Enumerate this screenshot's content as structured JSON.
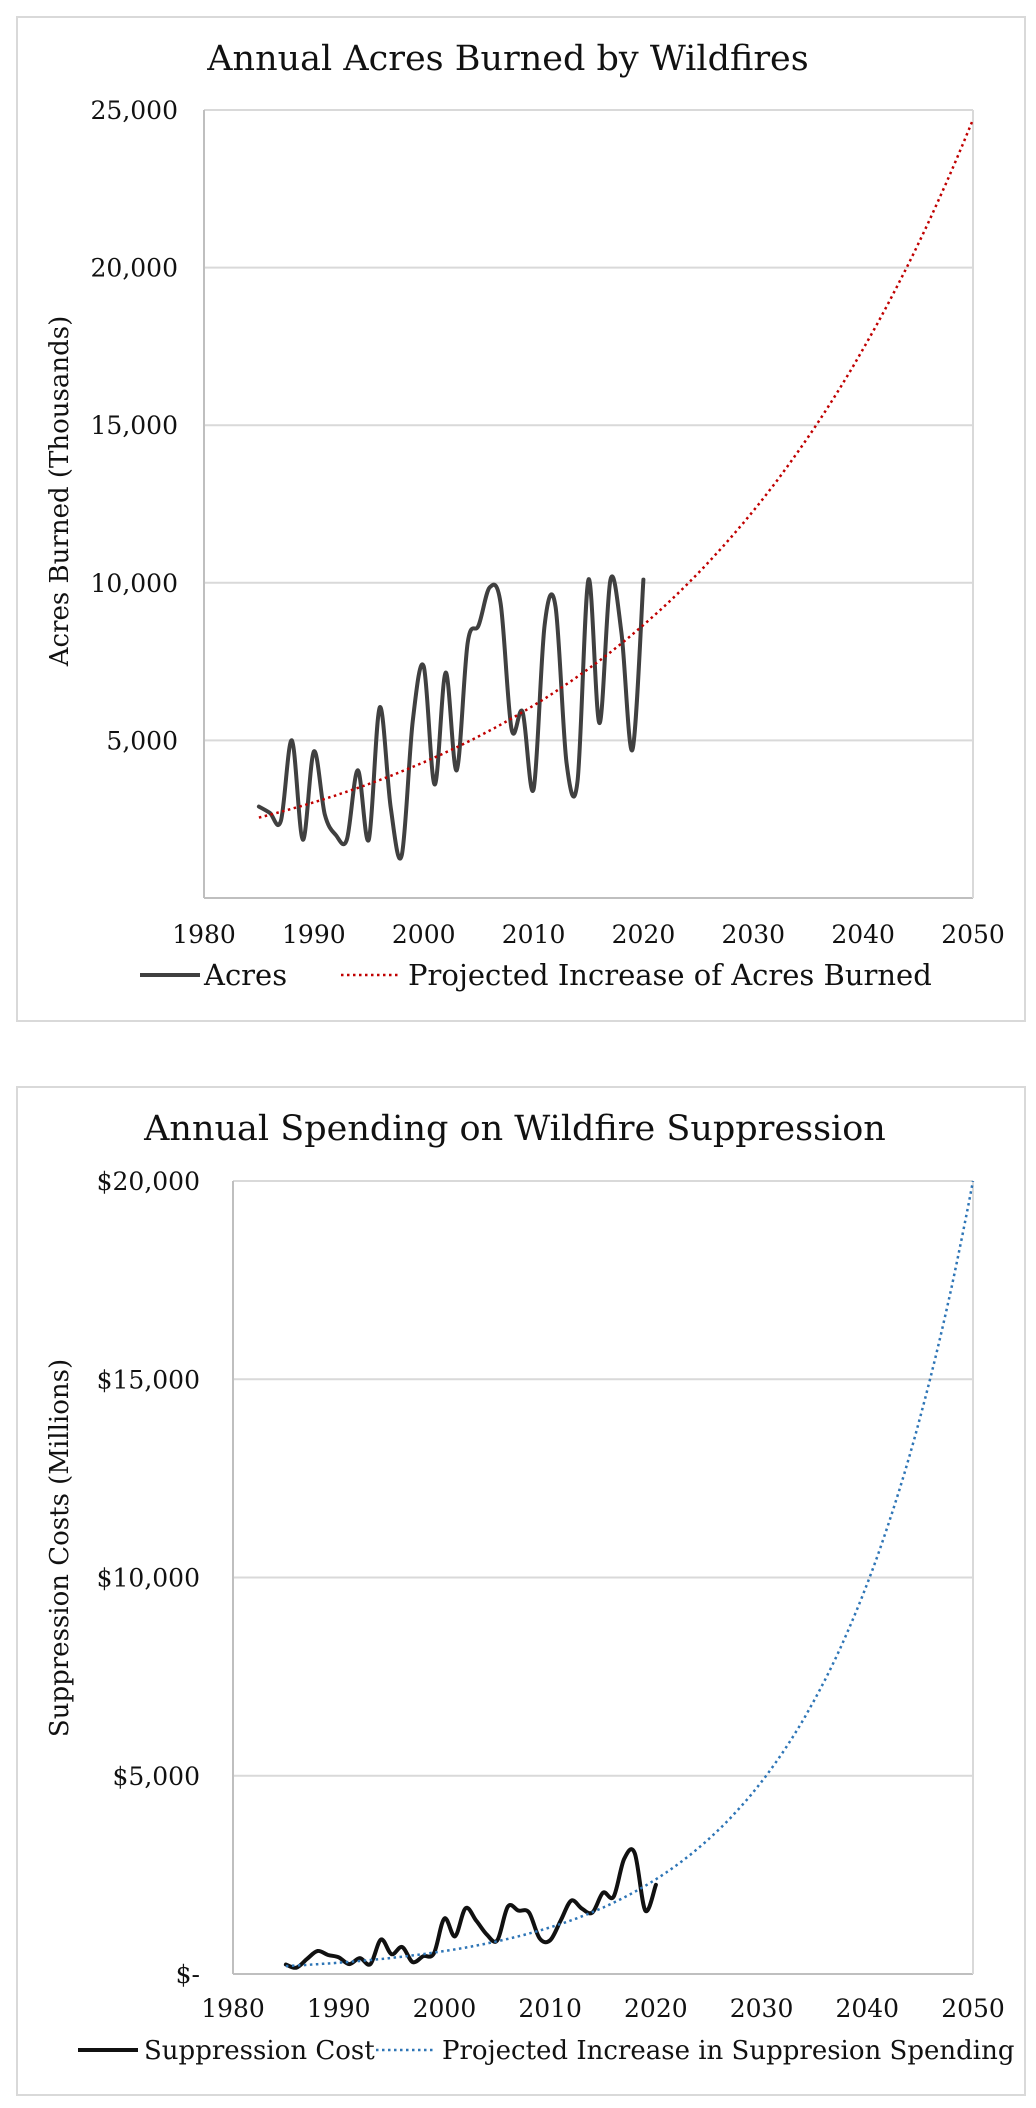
{
  "chart_data": [
    {
      "type": "line",
      "title": "Annual Acres Burned by Wildfires",
      "xlabel": "",
      "ylabel": "Acres Burned (Thousands)",
      "xlim": [
        1980,
        2050
      ],
      "ylim": [
        0,
        25000
      ],
      "x_ticks": [
        "1980",
        "1990",
        "2000",
        "2010",
        "2020",
        "2030",
        "2040",
        "2050"
      ],
      "y_ticks": [
        "5,000",
        "10,000",
        "15,000",
        "20,000",
        "25,000"
      ],
      "y_tick_values": [
        5000,
        10000,
        15000,
        20000,
        25000
      ],
      "grid": true,
      "legend_position": "bottom",
      "series": [
        {
          "name": "Acres",
          "style": "solid",
          "color": "#404040",
          "x": [
            1985,
            1986,
            1987,
            1988,
            1989,
            1990,
            1991,
            1992,
            1993,
            1994,
            1995,
            1996,
            1997,
            1998,
            1999,
            2000,
            2001,
            2002,
            2003,
            2004,
            2005,
            2006,
            2007,
            2008,
            2009,
            2010,
            2011,
            2012,
            2013,
            2014,
            2015,
            2016,
            2017,
            2018,
            2019,
            2020
          ],
          "values": [
            2900,
            2700,
            2450,
            5000,
            1850,
            4650,
            2650,
            2000,
            1850,
            4050,
            1850,
            6050,
            2850,
            1350,
            5600,
            7350,
            3600,
            7150,
            4050,
            8100,
            8650,
            9850,
            9350,
            5350,
            5900,
            3450,
            8650,
            9250,
            4300,
            3700,
            10100,
            5550,
            10100,
            8400,
            4700,
            10100
          ]
        },
        {
          "name": "Projected Increase of Acres Burned",
          "style": "dotted",
          "color": "#c00000",
          "trend": {
            "type": "exponential",
            "x0": 1985,
            "y0": 2550,
            "x1": 2050,
            "y1": 24700,
            "x_start": 1985,
            "x_end": 2050
          }
        }
      ]
    },
    {
      "type": "line",
      "title": "Annual Spending on Wildfire Suppression",
      "xlabel": "",
      "ylabel": "Suppression Costs (Millions)",
      "xlim": [
        1980,
        2050
      ],
      "ylim": [
        0,
        20000
      ],
      "x_ticks": [
        "1980",
        "1990",
        "2000",
        "2010",
        "2020",
        "2030",
        "2040",
        "2050"
      ],
      "y_ticks": [
        "$-",
        "$5,000",
        "$10,000",
        "$15,000",
        "$20,000"
      ],
      "y_tick_values": [
        0,
        5000,
        10000,
        15000,
        20000
      ],
      "grid": true,
      "legend_position": "bottom",
      "series": [
        {
          "name": "Suppression Cost",
          "style": "solid",
          "color": "#111111",
          "x": [
            1985,
            1986,
            1987,
            1988,
            1989,
            1990,
            1991,
            1992,
            1993,
            1994,
            1995,
            1996,
            1997,
            1998,
            1999,
            2000,
            2001,
            2002,
            2003,
            2004,
            2005,
            2006,
            2007,
            2008,
            2009,
            2010,
            2011,
            2012,
            2013,
            2014,
            2015,
            2016,
            2017,
            2018,
            2019,
            2020
          ],
          "values": [
            240,
            160,
            380,
            580,
            480,
            420,
            250,
            400,
            250,
            870,
            500,
            680,
            300,
            450,
            520,
            1400,
            950,
            1660,
            1350,
            1000,
            850,
            1700,
            1600,
            1550,
            900,
            850,
            1350,
            1850,
            1650,
            1550,
            2050,
            1950,
            2900,
            3050,
            1600,
            2250
          ]
        },
        {
          "name": "Projected Increase in Suppresion Spending",
          "style": "dotted",
          "color": "#2e75b6",
          "trend": {
            "type": "exponential",
            "x0": 1985,
            "y0": 200,
            "x1": 2050,
            "y1": 20000,
            "x_start": 1985,
            "x_end": 2050
          }
        }
      ]
    }
  ]
}
